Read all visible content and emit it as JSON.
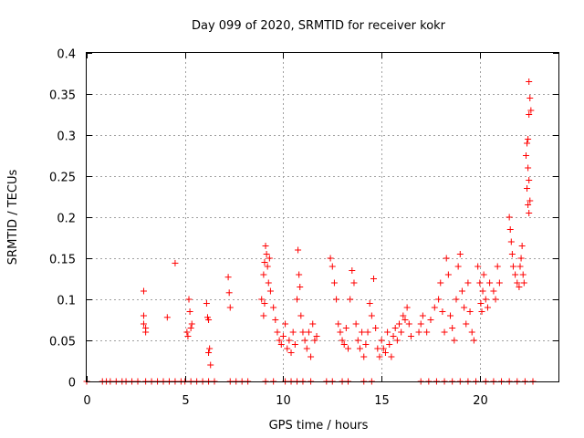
{
  "chart_data": {
    "type": "scatter",
    "title": "Day 099 of 2020, SRMTID for receiver kokr",
    "xlabel": "GPS time / hours",
    "ylabel": "SRMTID / TECUs",
    "xlim": [
      0,
      24
    ],
    "ylim": [
      0,
      0.4
    ],
    "xticks": [
      0,
      5,
      10,
      15,
      20
    ],
    "yticks": [
      0,
      0.05,
      0.1,
      0.15,
      0.2,
      0.25,
      0.3,
      0.35,
      0.4
    ],
    "xtick_labels": [
      "0",
      "5",
      "10",
      "15",
      "20"
    ],
    "ytick_labels": [
      "0",
      "0.05",
      "0.1",
      "0.15",
      "0.2",
      "0.25",
      "0.3",
      "0.35",
      "0.4"
    ],
    "grid": true,
    "marker": "+",
    "color": "#ff0000",
    "series": [
      {
        "name": "SRMTID",
        "points": [
          [
            2.9,
            0.11
          ],
          [
            2.9,
            0.08
          ],
          [
            2.9,
            0.07
          ],
          [
            3.0,
            0.06
          ],
          [
            3.0,
            0.065
          ],
          [
            4.1,
            0.078
          ],
          [
            4.5,
            0.144
          ],
          [
            5.1,
            0.06
          ],
          [
            5.15,
            0.055
          ],
          [
            5.2,
            0.1
          ],
          [
            5.25,
            0.085
          ],
          [
            5.3,
            0.065
          ],
          [
            5.35,
            0.07
          ],
          [
            6.1,
            0.095
          ],
          [
            6.15,
            0.078
          ],
          [
            6.2,
            0.075
          ],
          [
            6.25,
            0.04
          ],
          [
            6.2,
            0.035
          ],
          [
            6.3,
            0.02
          ],
          [
            7.2,
            0.127
          ],
          [
            7.25,
            0.108
          ],
          [
            7.3,
            0.09
          ],
          [
            8.9,
            0.1
          ],
          [
            9.0,
            0.13
          ],
          [
            9.05,
            0.145
          ],
          [
            9.1,
            0.165
          ],
          [
            9.15,
            0.155
          ],
          [
            9.2,
            0.14
          ],
          [
            9.25,
            0.12
          ],
          [
            9.3,
            0.15
          ],
          [
            9.35,
            0.11
          ],
          [
            9.0,
            0.08
          ],
          [
            9.05,
            0.095
          ],
          [
            9.5,
            0.09
          ],
          [
            9.6,
            0.075
          ],
          [
            9.7,
            0.06
          ],
          [
            9.8,
            0.05
          ],
          [
            9.9,
            0.045
          ],
          [
            10.0,
            0.055
          ],
          [
            10.1,
            0.07
          ],
          [
            10.2,
            0.04
          ],
          [
            10.3,
            0.05
          ],
          [
            10.4,
            0.035
          ],
          [
            10.5,
            0.06
          ],
          [
            10.6,
            0.045
          ],
          [
            10.7,
            0.1
          ],
          [
            10.75,
            0.16
          ],
          [
            10.8,
            0.13
          ],
          [
            10.85,
            0.115
          ],
          [
            10.9,
            0.08
          ],
          [
            11.0,
            0.06
          ],
          [
            11.1,
            0.05
          ],
          [
            11.2,
            0.04
          ],
          [
            11.3,
            0.06
          ],
          [
            11.4,
            0.03
          ],
          [
            11.5,
            0.07
          ],
          [
            11.6,
            0.05
          ],
          [
            11.7,
            0.055
          ],
          [
            12.4,
            0.15
          ],
          [
            12.5,
            0.14
          ],
          [
            12.6,
            0.12
          ],
          [
            12.7,
            0.1
          ],
          [
            12.8,
            0.07
          ],
          [
            12.9,
            0.06
          ],
          [
            13.0,
            0.05
          ],
          [
            13.1,
            0.045
          ],
          [
            13.2,
            0.065
          ],
          [
            13.3,
            0.04
          ],
          [
            13.4,
            0.1
          ],
          [
            13.5,
            0.135
          ],
          [
            13.6,
            0.12
          ],
          [
            13.7,
            0.07
          ],
          [
            13.8,
            0.05
          ],
          [
            13.9,
            0.04
          ],
          [
            14.0,
            0.06
          ],
          [
            14.1,
            0.03
          ],
          [
            14.2,
            0.045
          ],
          [
            14.3,
            0.06
          ],
          [
            14.4,
            0.095
          ],
          [
            14.5,
            0.08
          ],
          [
            14.6,
            0.125
          ],
          [
            14.7,
            0.065
          ],
          [
            14.8,
            0.04
          ],
          [
            14.9,
            0.03
          ],
          [
            15.0,
            0.05
          ],
          [
            15.1,
            0.04
          ],
          [
            15.2,
            0.035
          ],
          [
            15.3,
            0.06
          ],
          [
            15.4,
            0.045
          ],
          [
            15.5,
            0.03
          ],
          [
            15.6,
            0.055
          ],
          [
            15.7,
            0.065
          ],
          [
            15.8,
            0.05
          ],
          [
            15.9,
            0.07
          ],
          [
            16.0,
            0.06
          ],
          [
            16.1,
            0.08
          ],
          [
            16.2,
            0.075
          ],
          [
            16.3,
            0.09
          ],
          [
            16.4,
            0.07
          ],
          [
            16.5,
            0.055
          ],
          [
            16.9,
            0.06
          ],
          [
            17.0,
            0.07
          ],
          [
            17.1,
            0.08
          ],
          [
            17.3,
            0.06
          ],
          [
            17.5,
            0.075
          ],
          [
            17.7,
            0.09
          ],
          [
            17.9,
            0.1
          ],
          [
            18.0,
            0.12
          ],
          [
            18.1,
            0.085
          ],
          [
            18.2,
            0.06
          ],
          [
            18.3,
            0.15
          ],
          [
            18.4,
            0.13
          ],
          [
            18.5,
            0.08
          ],
          [
            18.6,
            0.065
          ],
          [
            18.7,
            0.05
          ],
          [
            18.8,
            0.1
          ],
          [
            18.9,
            0.14
          ],
          [
            19.0,
            0.155
          ],
          [
            19.1,
            0.11
          ],
          [
            19.2,
            0.09
          ],
          [
            19.3,
            0.07
          ],
          [
            19.4,
            0.12
          ],
          [
            19.5,
            0.085
          ],
          [
            19.6,
            0.06
          ],
          [
            19.7,
            0.05
          ],
          [
            19.9,
            0.14
          ],
          [
            20.0,
            0.12
          ],
          [
            20.05,
            0.095
          ],
          [
            20.1,
            0.085
          ],
          [
            20.15,
            0.11
          ],
          [
            20.2,
            0.13
          ],
          [
            20.3,
            0.1
          ],
          [
            20.4,
            0.09
          ],
          [
            20.5,
            0.12
          ],
          [
            20.7,
            0.11
          ],
          [
            20.8,
            0.1
          ],
          [
            20.9,
            0.14
          ],
          [
            21.0,
            0.12
          ],
          [
            21.5,
            0.2
          ],
          [
            21.55,
            0.185
          ],
          [
            21.6,
            0.17
          ],
          [
            21.65,
            0.155
          ],
          [
            21.7,
            0.14
          ],
          [
            21.8,
            0.13
          ],
          [
            21.9,
            0.12
          ],
          [
            22.0,
            0.115
          ],
          [
            22.05,
            0.14
          ],
          [
            22.1,
            0.15
          ],
          [
            22.15,
            0.165
          ],
          [
            22.2,
            0.13
          ],
          [
            22.25,
            0.12
          ],
          [
            22.5,
            0.365
          ],
          [
            22.55,
            0.345
          ],
          [
            22.6,
            0.33
          ],
          [
            22.5,
            0.325
          ],
          [
            22.45,
            0.295
          ],
          [
            22.4,
            0.29
          ],
          [
            22.35,
            0.275
          ],
          [
            22.45,
            0.26
          ],
          [
            22.5,
            0.245
          ],
          [
            22.4,
            0.235
          ],
          [
            22.55,
            0.22
          ],
          [
            22.45,
            0.215
          ],
          [
            22.5,
            0.205
          ],
          [
            0.0,
            0
          ],
          [
            0.8,
            0
          ],
          [
            1.0,
            0
          ],
          [
            1.2,
            0
          ],
          [
            1.5,
            0
          ],
          [
            1.8,
            0
          ],
          [
            2.0,
            0
          ],
          [
            2.3,
            0
          ],
          [
            2.6,
            0
          ],
          [
            3.0,
            0
          ],
          [
            3.3,
            0
          ],
          [
            3.6,
            0
          ],
          [
            3.9,
            0
          ],
          [
            4.2,
            0
          ],
          [
            4.5,
            0
          ],
          [
            4.8,
            0
          ],
          [
            5.0,
            0
          ],
          [
            5.3,
            0
          ],
          [
            5.6,
            0
          ],
          [
            5.9,
            0
          ],
          [
            6.2,
            0
          ],
          [
            6.5,
            0
          ],
          [
            7.3,
            0
          ],
          [
            7.6,
            0
          ],
          [
            7.9,
            0
          ],
          [
            8.2,
            0
          ],
          [
            9.1,
            0
          ],
          [
            9.5,
            0
          ],
          [
            10.1,
            0
          ],
          [
            10.4,
            0
          ],
          [
            10.7,
            0
          ],
          [
            11.0,
            0
          ],
          [
            11.4,
            0
          ],
          [
            12.2,
            0
          ],
          [
            12.5,
            0
          ],
          [
            13.0,
            0
          ],
          [
            13.3,
            0
          ],
          [
            14.1,
            0
          ],
          [
            14.5,
            0
          ],
          [
            17.0,
            0
          ],
          [
            17.4,
            0
          ],
          [
            17.8,
            0
          ],
          [
            18.2,
            0
          ],
          [
            18.6,
            0
          ],
          [
            19.0,
            0
          ],
          [
            19.4,
            0
          ],
          [
            19.8,
            0
          ],
          [
            20.3,
            0
          ],
          [
            20.7,
            0
          ],
          [
            21.1,
            0
          ],
          [
            21.5,
            0
          ],
          [
            21.9,
            0
          ],
          [
            22.3,
            0
          ],
          [
            22.7,
            0
          ]
        ]
      }
    ]
  }
}
